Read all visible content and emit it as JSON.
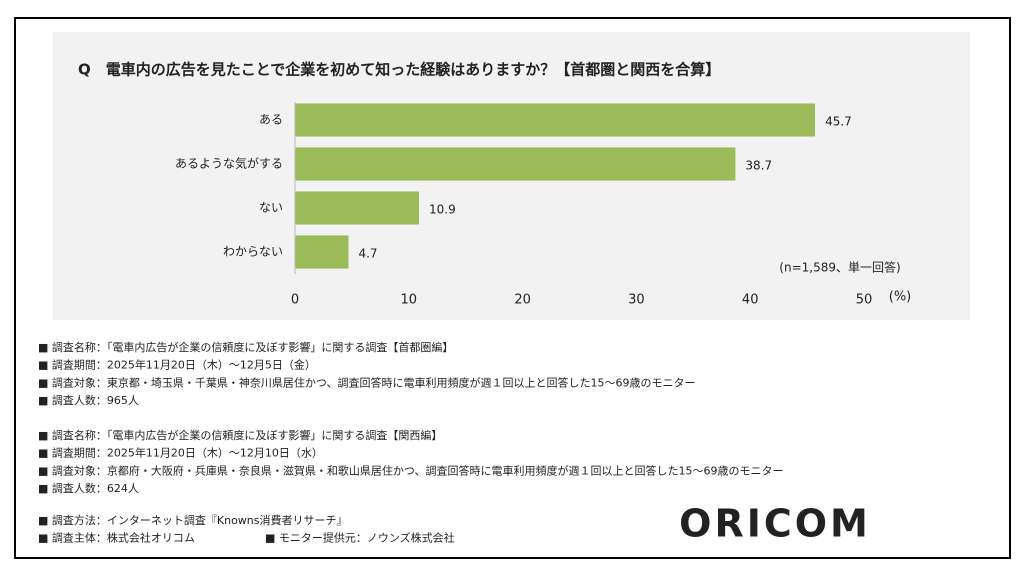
{
  "chart_data": {
    "type": "hbar",
    "title": "Q　電車内の広告を見たことで企業を初めて知った経験はありますか？【首都圏と関西を合算】",
    "categories": [
      "ある",
      "あるような気がする",
      "ない",
      "わからない"
    ],
    "values": [
      45.7,
      38.7,
      10.9,
      4.7
    ],
    "color": "#9bbb59",
    "xlim": [
      0,
      50
    ],
    "xticks": [
      0,
      10,
      20,
      30,
      40,
      50
    ],
    "unit_label": "(%)",
    "sample_note": "(n=1,589、単一回答)"
  },
  "notes": [
    [
      "■ 調査名称：「電車内広告が企業の信頼度に及ぼす影響」に関する調査【首都圏編】",
      "■ 調査期間：2025年11月20日（木）～12月5日（金）",
      "■ 調査対象：東京都・埼玉県・千葉県・神奈川県居住かつ、調査回答時に電車利用頻度が週１回以上と回答した15～69歳のモニター",
      "■ 調査人数：965人"
    ],
    [
      "■ 調査名称：「電車内広告が企業の信頼度に及ぼす影響」に関する調査【関西編】",
      "■ 調査期間：2025年11月20日（木）～12月10日（水）",
      "■ 調査対象：京都府・大阪府・兵庫県・奈良県・滋賀県・和歌山県居住かつ、調査回答時に電車利用頻度が週１回以上と回答した15～69歳のモニター",
      "■ 調査人数：624人"
    ],
    [
      "■ 調査方法：インターネット調査『Knowns消費者リサーチ』",
      "■ 調査主体：株式会社オリコム",
      "■ モニター提供元：ノウンズ株式会社"
    ]
  ],
  "logo": "ORICOM"
}
